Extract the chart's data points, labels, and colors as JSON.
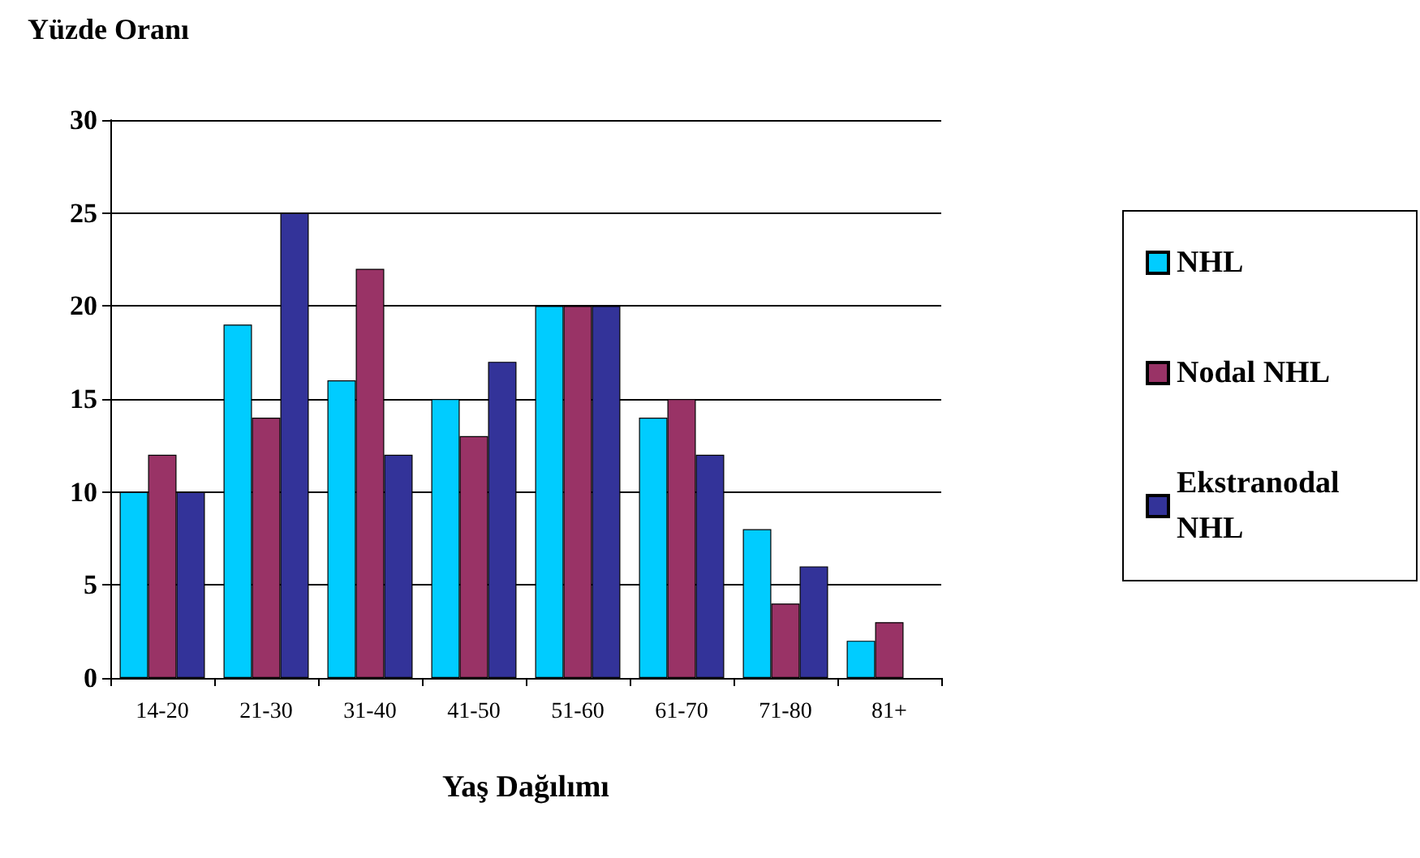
{
  "chart_data": {
    "type": "bar",
    "ylabel": "Yüzde Oranı",
    "xlabel": "Yaş Dağılımı",
    "categories": [
      "14-20",
      "21-30",
      "31-40",
      "41-50",
      "51-60",
      "61-70",
      "71-80",
      "81+"
    ],
    "series": [
      {
        "name": "NHL",
        "color": "#00ccff",
        "values": [
          10,
          19,
          16,
          15,
          20,
          14,
          8,
          2
        ]
      },
      {
        "name": "Nodal NHL",
        "color": "#993366",
        "values": [
          12,
          14,
          22,
          13,
          20,
          15,
          4,
          3
        ]
      },
      {
        "name": "Ekstranodal NHL",
        "color": "#333399",
        "values": [
          10,
          25,
          12,
          17,
          20,
          12,
          6,
          null
        ]
      }
    ],
    "ylim": [
      0,
      30
    ],
    "yticks": [
      0,
      5,
      10,
      15,
      20,
      25,
      30
    ],
    "grid": "y",
    "legend": "right"
  }
}
